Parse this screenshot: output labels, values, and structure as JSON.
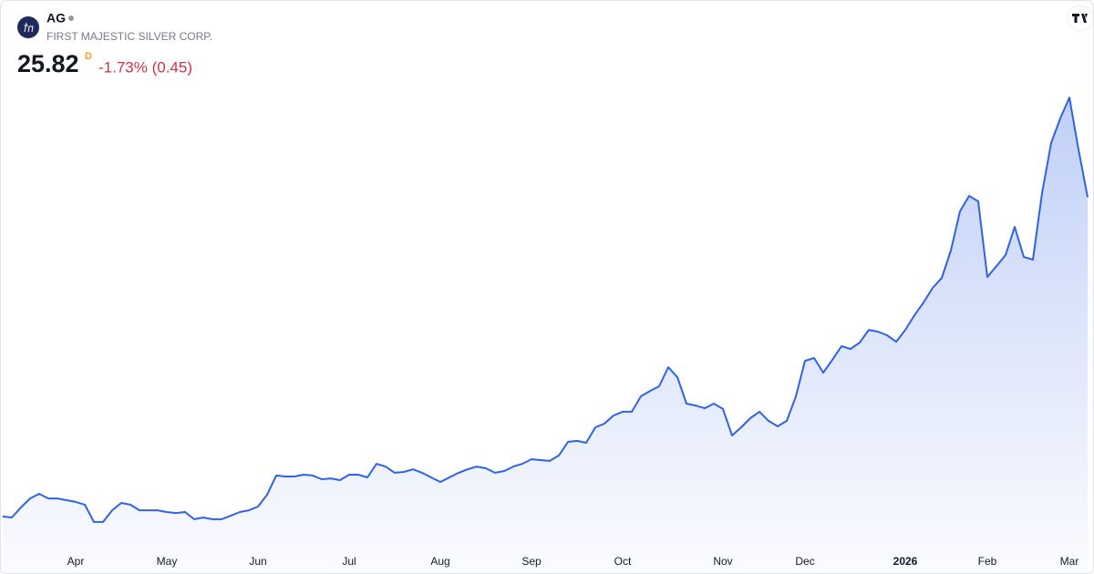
{
  "chart_data": {
    "type": "area",
    "title": "AG",
    "subtitle": "FIRST MAJESTIC SILVER CORP.",
    "price_flag": "D",
    "change": "-1.73% (0.45)",
    "color": "#2f62e6",
    "change_color": "#d0314a",
    "ylim": [
      4,
      33
    ],
    "categories": [
      null,
      null,
      null,
      null,
      null,
      null,
      null,
      null,
      "Apr",
      null,
      null,
      null,
      null,
      null,
      null,
      null,
      null,
      null,
      "May",
      null,
      null,
      null,
      null,
      null,
      null,
      null,
      null,
      null,
      "Jun",
      null,
      null,
      null,
      null,
      null,
      null,
      null,
      null,
      null,
      "Jul",
      null,
      null,
      null,
      null,
      null,
      null,
      null,
      null,
      null,
      "Aug",
      null,
      null,
      null,
      null,
      null,
      null,
      null,
      null,
      null,
      "Sep",
      null,
      null,
      null,
      null,
      null,
      null,
      null,
      null,
      null,
      "Oct",
      null,
      null,
      null,
      null,
      null,
      null,
      null,
      null,
      null,
      null,
      "Nov",
      null,
      null,
      null,
      null,
      null,
      null,
      null,
      null,
      "Dec",
      null,
      null,
      null,
      null,
      null,
      null,
      null,
      null,
      null,
      null,
      "2026",
      null,
      null,
      null,
      null,
      null,
      null,
      null,
      null,
      "Feb",
      null,
      null,
      null,
      null,
      null,
      null,
      null,
      null,
      "Mar",
      null,
      null
    ],
    "values": [
      5.88,
      5.82,
      6.45,
      7.01,
      7.3,
      7.01,
      7.01,
      6.9,
      6.79,
      6.62,
      5.54,
      5.54,
      6.27,
      6.73,
      6.62,
      6.27,
      6.27,
      6.27,
      6.16,
      6.1,
      6.16,
      5.71,
      5.82,
      5.71,
      5.71,
      5.93,
      6.16,
      6.27,
      6.5,
      7.24,
      8.44,
      8.38,
      8.38,
      8.49,
      8.44,
      8.21,
      8.26,
      8.15,
      8.49,
      8.49,
      8.32,
      9.17,
      9.0,
      8.61,
      8.66,
      8.83,
      8.61,
      8.32,
      8.04,
      8.32,
      8.61,
      8.83,
      9.0,
      8.89,
      8.61,
      8.72,
      9.0,
      9.17,
      9.46,
      9.4,
      9.35,
      9.69,
      10.54,
      10.6,
      10.48,
      11.45,
      11.68,
      12.19,
      12.42,
      12.42,
      13.38,
      13.72,
      14.01,
      15.2,
      14.58,
      12.93,
      12.81,
      12.64,
      12.93,
      12.59,
      10.94,
      11.45,
      12.02,
      12.42,
      11.85,
      11.51,
      11.85,
      13.38,
      15.6,
      15.77,
      14.86,
      15.66,
      16.51,
      16.34,
      16.74,
      17.53,
      17.42,
      17.19,
      16.79,
      17.53,
      18.44,
      19.24,
      20.15,
      20.77,
      22.48,
      24.93,
      25.89,
      25.55,
      20.83,
      21.51,
      22.2,
      23.96,
      22.08,
      21.91,
      26.06,
      29.19,
      30.73,
      32.03,
      28.79,
      25.82
    ]
  }
}
